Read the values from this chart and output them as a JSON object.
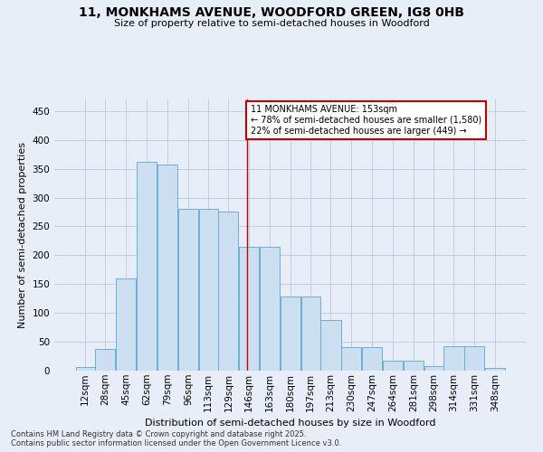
{
  "title": "11, MONKHAMS AVENUE, WOODFORD GREEN, IG8 0HB",
  "subtitle": "Size of property relative to semi-detached houses in Woodford",
  "xlabel": "Distribution of semi-detached houses by size in Woodford",
  "ylabel": "Number of semi-detached properties",
  "footnote1": "Contains HM Land Registry data © Crown copyright and database right 2025.",
  "footnote2": "Contains public sector information licensed under the Open Government Licence v3.0.",
  "annotation_line1": "11 MONKHAMS AVENUE: 153sqm",
  "annotation_line2": "← 78% of semi-detached houses are smaller (1,580)",
  "annotation_line3": "22% of semi-detached houses are larger (449) →",
  "bar_labels": [
    "12sqm",
    "28sqm",
    "45sqm",
    "62sqm",
    "79sqm",
    "96sqm",
    "113sqm",
    "129sqm",
    "146sqm",
    "163sqm",
    "180sqm",
    "197sqm",
    "213sqm",
    "230sqm",
    "247sqm",
    "264sqm",
    "281sqm",
    "298sqm",
    "314sqm",
    "331sqm",
    "348sqm"
  ],
  "bar_left_edges": [
    12,
    28,
    45,
    62,
    79,
    96,
    113,
    129,
    146,
    163,
    180,
    197,
    213,
    230,
    247,
    264,
    281,
    298,
    314,
    331,
    348
  ],
  "bar_widths": [
    16,
    17,
    17,
    17,
    17,
    17,
    16,
    17,
    17,
    17,
    17,
    16,
    17,
    17,
    17,
    17,
    17,
    16,
    17,
    17,
    17
  ],
  "bar_heights": [
    6,
    38,
    160,
    362,
    357,
    281,
    281,
    275,
    215,
    215,
    128,
    128,
    88,
    40,
    40,
    18,
    18,
    8,
    42,
    42,
    5
  ],
  "bar_color": "#ccdff0",
  "bar_edge_color": "#6aaed6",
  "vertical_line_color": "#c00000",
  "vertical_line_x": 153,
  "annotation_box_edgecolor": "#c00000",
  "background_color": "#e8eef8",
  "grid_color": "#c0cfe0",
  "ylim": [
    0,
    470
  ],
  "yticks": [
    0,
    50,
    100,
    150,
    200,
    250,
    300,
    350,
    400,
    450
  ],
  "title_fontsize": 10,
  "subtitle_fontsize": 8,
  "ylabel_fontsize": 8,
  "xlabel_fontsize": 8,
  "tick_fontsize": 7.5,
  "footnote_fontsize": 6
}
